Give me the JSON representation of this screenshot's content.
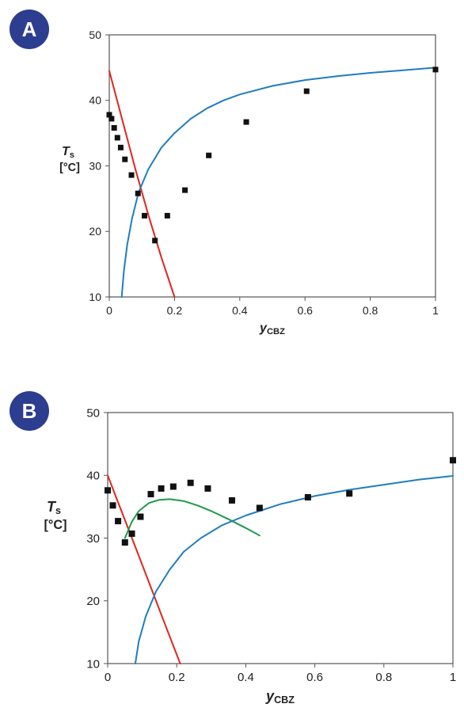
{
  "chart_data": [
    {
      "panel_label": "A",
      "type": "scatter",
      "xlabel_main": "y",
      "xlabel_sub": "CBZ",
      "ylabel_main": "T",
      "ylabel_sub": "s",
      "ylabel_unit": "[°C]",
      "xlim": [
        0,
        1
      ],
      "ylim": [
        10,
        50
      ],
      "xticks": [
        "0",
        "0.2",
        "0.4",
        "0.6",
        "0.8",
        "1"
      ],
      "yticks": [
        "10",
        "20",
        "30",
        "40",
        "50"
      ],
      "grid": false,
      "points": [
        {
          "x": 0.0,
          "y": 37.8
        },
        {
          "x": 0.007,
          "y": 37.2
        },
        {
          "x": 0.015,
          "y": 35.8
        },
        {
          "x": 0.025,
          "y": 34.3
        },
        {
          "x": 0.035,
          "y": 32.8
        },
        {
          "x": 0.048,
          "y": 31.0
        },
        {
          "x": 0.068,
          "y": 28.6
        },
        {
          "x": 0.088,
          "y": 25.8
        },
        {
          "x": 0.108,
          "y": 22.4
        },
        {
          "x": 0.14,
          "y": 18.6
        },
        {
          "x": 0.178,
          "y": 22.4
        },
        {
          "x": 0.232,
          "y": 26.3
        },
        {
          "x": 0.305,
          "y": 31.6
        },
        {
          "x": 0.42,
          "y": 36.7
        },
        {
          "x": 0.605,
          "y": 41.4
        },
        {
          "x": 1.0,
          "y": 44.7
        }
      ],
      "lines": [
        {
          "color": "#e0261b",
          "x": [
            0.0,
            0.04,
            0.08,
            0.12,
            0.16,
            0.2
          ],
          "y": [
            44.5,
            37.0,
            29.5,
            22.5,
            16.0,
            10.0
          ]
        },
        {
          "color": "#1f7dc1",
          "x": [
            0.038,
            0.045,
            0.055,
            0.07,
            0.09,
            0.12,
            0.16,
            0.2,
            0.25,
            0.3,
            0.35,
            0.4,
            0.5,
            0.6,
            0.7,
            0.8,
            0.9,
            1.0
          ],
          "y": [
            10.0,
            14.0,
            18.0,
            22.0,
            26.0,
            29.5,
            32.8,
            35.0,
            37.2,
            38.8,
            40.0,
            40.9,
            42.2,
            43.1,
            43.7,
            44.2,
            44.6,
            45.0
          ]
        }
      ]
    },
    {
      "panel_label": "B",
      "type": "scatter",
      "xlabel_main": "y",
      "xlabel_sub": "CBZ",
      "ylabel_main": "T",
      "ylabel_sub": "s",
      "ylabel_unit": "[°C]",
      "xlim": [
        0,
        1
      ],
      "ylim": [
        10,
        50
      ],
      "xticks": [
        "0",
        "0.2",
        "0.4",
        "0.6",
        "0.8",
        "1"
      ],
      "yticks": [
        "10",
        "20",
        "30",
        "40",
        "50"
      ],
      "grid": false,
      "points": [
        {
          "x": 0.0,
          "y": 37.6
        },
        {
          "x": 0.015,
          "y": 35.2
        },
        {
          "x": 0.03,
          "y": 32.7
        },
        {
          "x": 0.05,
          "y": 29.3
        },
        {
          "x": 0.07,
          "y": 30.7
        },
        {
          "x": 0.095,
          "y": 33.4
        },
        {
          "x": 0.125,
          "y": 37.0
        },
        {
          "x": 0.155,
          "y": 37.9
        },
        {
          "x": 0.19,
          "y": 38.2
        },
        {
          "x": 0.24,
          "y": 38.8
        },
        {
          "x": 0.29,
          "y": 37.9
        },
        {
          "x": 0.36,
          "y": 36.0
        },
        {
          "x": 0.44,
          "y": 34.8
        },
        {
          "x": 0.58,
          "y": 36.5
        },
        {
          "x": 0.7,
          "y": 37.1
        },
        {
          "x": 1.0,
          "y": 42.4
        }
      ],
      "lines": [
        {
          "color": "#e0261b",
          "x": [
            0.0,
            0.04,
            0.08,
            0.12,
            0.16,
            0.21
          ],
          "y": [
            40.0,
            34.3,
            28.6,
            22.9,
            17.1,
            10.0
          ]
        },
        {
          "color": "#1f9a4a",
          "x": [
            0.05,
            0.07,
            0.09,
            0.12,
            0.15,
            0.18,
            0.22,
            0.26,
            0.3,
            0.35,
            0.4,
            0.44
          ],
          "y": [
            30.0,
            32.6,
            34.3,
            35.6,
            36.1,
            36.2,
            35.9,
            35.2,
            34.3,
            33.0,
            31.6,
            30.4
          ]
        },
        {
          "color": "#1f7dc1",
          "x": [
            0.08,
            0.09,
            0.11,
            0.14,
            0.18,
            0.22,
            0.27,
            0.33,
            0.4,
            0.5,
            0.6,
            0.7,
            0.8,
            0.9,
            1.0
          ],
          "y": [
            10.0,
            13.5,
            17.5,
            21.5,
            25.0,
            27.8,
            30.0,
            32.0,
            33.6,
            35.4,
            36.7,
            37.7,
            38.5,
            39.3,
            39.9
          ]
        }
      ]
    }
  ]
}
